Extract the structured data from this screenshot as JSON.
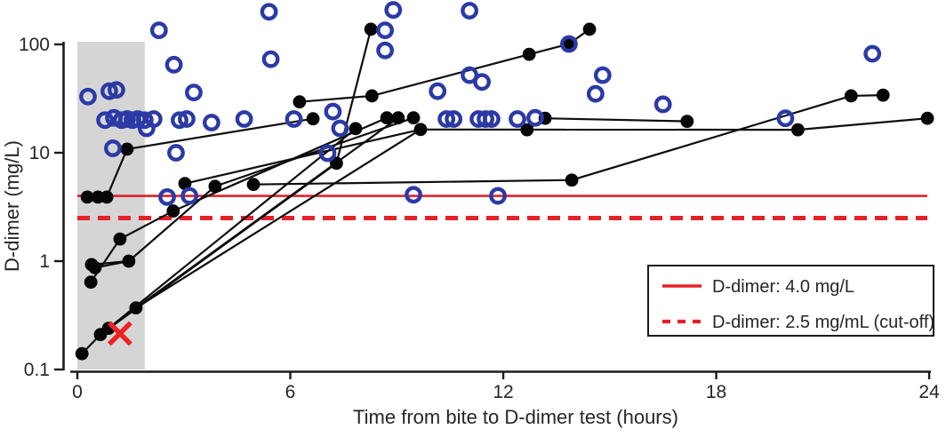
{
  "chart_data": {
    "type": "scatter",
    "title": "",
    "xlabel": "Time from bite to D-dimer test (hours)",
    "ylabel": "D-dimer (mg/L)",
    "x_ticks": [
      0,
      6,
      12,
      18,
      24
    ],
    "y_ticks": [
      100,
      10,
      1,
      0.1
    ],
    "xlim": [
      0,
      24
    ],
    "ylim": [
      0.1,
      250
    ],
    "y_scale": "log",
    "grid": "off",
    "shaded_band": {
      "x0": 0,
      "x1": 1.9,
      "color": "#d5d5d5"
    },
    "reference_lines": [
      {
        "label": "D-dimer: 4.0 mg/L",
        "value": 4.0,
        "style": "solid",
        "color": "#e32228"
      },
      {
        "label": "D-dimer: 2.5 mg/mL (cut-off)",
        "value": 2.5,
        "style": "dashed",
        "color": "#e32228"
      }
    ],
    "legend": {
      "position": "bottom-right",
      "border_color": "#1a1a1a"
    },
    "special_marker": {
      "type": "x-cross",
      "x": 1.2,
      "y": 0.215,
      "color": "#ee2224"
    },
    "series": [
      {
        "name": "serial-tests-black-filled",
        "marker": "filled-circle",
        "color": "#060606",
        "points": [
          [
            0.13,
            0.14
          ],
          [
            0.65,
            0.21
          ],
          [
            0.88,
            0.24
          ],
          [
            0.38,
            0.64
          ],
          [
            0.4,
            0.93
          ],
          [
            0.5,
            0.87
          ],
          [
            1.2,
            1.6
          ],
          [
            1.45,
            1.0
          ],
          [
            1.65,
            0.37
          ],
          [
            0.28,
            3.9
          ],
          [
            0.58,
            3.9
          ],
          [
            0.83,
            3.9
          ],
          [
            1.4,
            10.8
          ],
          [
            2.7,
            2.9
          ],
          [
            3.03,
            5.2
          ],
          [
            3.88,
            4.9
          ],
          [
            4.96,
            5.1
          ],
          [
            6.26,
            29.5
          ],
          [
            6.64,
            20.6
          ],
          [
            7.3,
            8.0
          ],
          [
            7.84,
            16.7
          ],
          [
            8.27,
            138
          ],
          [
            8.3,
            33.5
          ],
          [
            8.72,
            21
          ],
          [
            9.04,
            21
          ],
          [
            9.47,
            21
          ],
          [
            9.67,
            16.4
          ],
          [
            12.67,
            16.3
          ],
          [
            12.73,
            81
          ],
          [
            13.18,
            20.8
          ],
          [
            13.85,
            101
          ],
          [
            13.93,
            5.6
          ],
          [
            14.43,
            138
          ],
          [
            17.18,
            19.5
          ],
          [
            20.3,
            16.3
          ],
          [
            21.8,
            33.5
          ],
          [
            22.7,
            34
          ],
          [
            23.95,
            20.8
          ]
        ]
      },
      {
        "name": "single-tests-blue-open",
        "marker": "open-circle",
        "color": "#2b3aa5",
        "points": [
          [
            0.3,
            33
          ],
          [
            0.9,
            37
          ],
          [
            1.1,
            38
          ],
          [
            1.0,
            11
          ],
          [
            0.78,
            20
          ],
          [
            1.03,
            21
          ],
          [
            1.25,
            20
          ],
          [
            1.4,
            20.5
          ],
          [
            1.55,
            20
          ],
          [
            1.7,
            20.5
          ],
          [
            1.9,
            20
          ],
          [
            2.15,
            20.5
          ],
          [
            1.95,
            16.8
          ],
          [
            2.88,
            20
          ],
          [
            3.08,
            20.5
          ],
          [
            3.78,
            19
          ],
          [
            4.7,
            20.5
          ],
          [
            2.3,
            135
          ],
          [
            2.72,
            65
          ],
          [
            3.28,
            36
          ],
          [
            2.53,
            3.9
          ],
          [
            3.16,
            4.0
          ],
          [
            2.78,
            10
          ],
          [
            5.4,
            200
          ],
          [
            5.45,
            73
          ],
          [
            6.1,
            20.5
          ],
          [
            7.05,
            9.9
          ],
          [
            7.2,
            24
          ],
          [
            7.4,
            16.8
          ],
          [
            8.67,
            135
          ],
          [
            8.9,
            208
          ],
          [
            8.67,
            88
          ],
          [
            9.47,
            4.1
          ],
          [
            10.15,
            37
          ],
          [
            10.4,
            20.5
          ],
          [
            10.6,
            20.5
          ],
          [
            11.05,
            205
          ],
          [
            11.05,
            52
          ],
          [
            11.4,
            45
          ],
          [
            11.3,
            20.5
          ],
          [
            11.5,
            20.5
          ],
          [
            11.67,
            20.5
          ],
          [
            11.85,
            4.0
          ],
          [
            12.4,
            20.5
          ],
          [
            12.9,
            21
          ],
          [
            13.85,
            101
          ],
          [
            14.6,
            35
          ],
          [
            14.8,
            52
          ],
          [
            16.5,
            28
          ],
          [
            19.95,
            20.8
          ],
          [
            22.4,
            82
          ]
        ]
      }
    ],
    "links": [
      [
        [
          0.13,
          0.14
        ],
        [
          0.65,
          0.21
        ]
      ],
      [
        [
          0.65,
          0.21
        ],
        [
          7.3,
          8.0
        ]
      ],
      [
        [
          7.3,
          8.0
        ],
        [
          8.27,
          138
        ]
      ],
      [
        [
          0.88,
          0.24
        ],
        [
          7.84,
          16.7
        ]
      ],
      [
        [
          1.65,
          0.37
        ],
        [
          9.04,
          21
        ]
      ],
      [
        [
          1.65,
          0.37
        ],
        [
          9.67,
          16.4
        ]
      ],
      [
        [
          0.38,
          0.64
        ],
        [
          1.2,
          1.6
        ]
      ],
      [
        [
          1.2,
          1.6
        ],
        [
          2.7,
          2.9
        ]
      ],
      [
        [
          2.7,
          2.9
        ],
        [
          8.72,
          21
        ]
      ],
      [
        [
          0.4,
          0.93
        ],
        [
          1.45,
          1.0
        ]
      ],
      [
        [
          0.5,
          0.87
        ],
        [
          1.45,
          1.0
        ]
      ],
      [
        [
          1.45,
          1.0
        ],
        [
          3.88,
          4.9
        ]
      ],
      [
        [
          3.88,
          4.9
        ],
        [
          9.47,
          21
        ]
      ],
      [
        [
          0.28,
          3.9
        ],
        [
          0.58,
          3.9
        ]
      ],
      [
        [
          0.58,
          3.9
        ],
        [
          0.83,
          3.9
        ]
      ],
      [
        [
          0.83,
          3.9
        ],
        [
          1.4,
          10.8
        ]
      ],
      [
        [
          1.4,
          10.8
        ],
        [
          6.64,
          20.6
        ]
      ],
      [
        [
          3.03,
          5.2
        ],
        [
          9.67,
          16.4
        ]
      ],
      [
        [
          4.96,
          5.1
        ],
        [
          13.93,
          5.6
        ]
      ],
      [
        [
          13.93,
          5.6
        ],
        [
          21.8,
          33.5
        ]
      ],
      [
        [
          21.8,
          33.5
        ],
        [
          22.7,
          34
        ]
      ],
      [
        [
          6.26,
          29.5
        ],
        [
          8.3,
          33.5
        ]
      ],
      [
        [
          8.3,
          33.5
        ],
        [
          12.73,
          81
        ]
      ],
      [
        [
          12.73,
          81
        ],
        [
          13.85,
          101
        ]
      ],
      [
        [
          13.85,
          101
        ],
        [
          14.43,
          138
        ]
      ],
      [
        [
          12.67,
          16.3
        ],
        [
          13.18,
          20.8
        ]
      ],
      [
        [
          13.18,
          20.8
        ],
        [
          17.18,
          19.5
        ]
      ],
      [
        [
          9.67,
          16.4
        ],
        [
          20.3,
          16.3
        ]
      ],
      [
        [
          20.3,
          16.3
        ],
        [
          23.95,
          20.8
        ]
      ]
    ]
  }
}
